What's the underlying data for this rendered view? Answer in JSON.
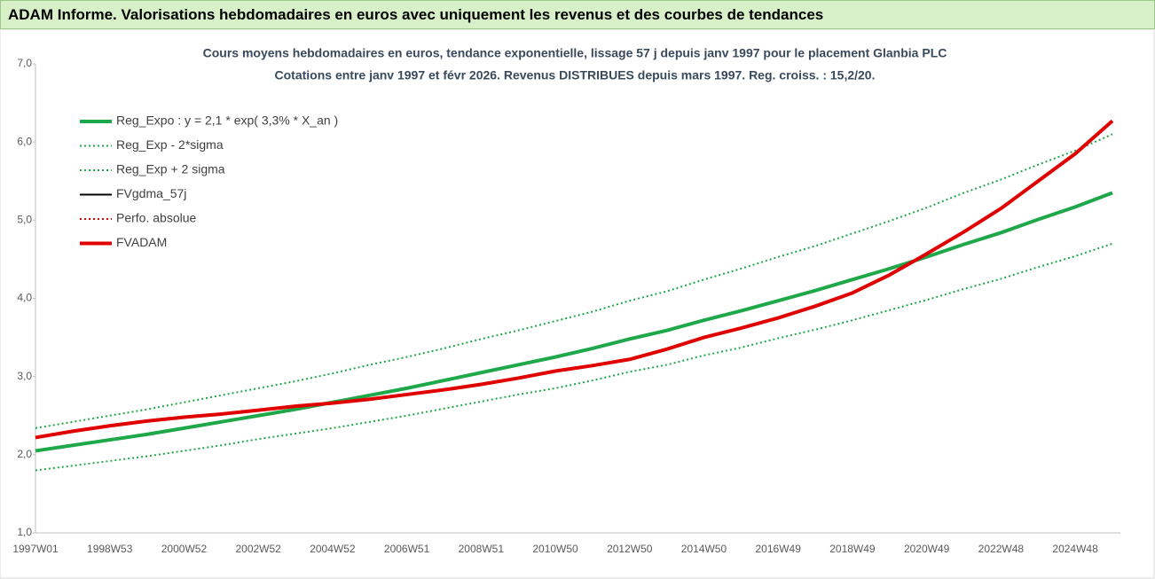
{
  "header": {
    "title": "ADAM Informe. Valorisations hebdomadaires en euros avec uniquement les revenus et des courbes de tendances"
  },
  "chart_data": {
    "type": "line",
    "title": "Cours moyens hebdomadaires en euros, tendance exponentielle, lissage 57 j depuis janv 1997 pour le placement Glanbia PLC",
    "subtitle": "Cotations entre janv 1997 et févr 2026. Revenus DISTRIBUES depuis mars 1997. Reg. croiss. : 15,2/20.",
    "categories": [
      "1997W01",
      null,
      "1998W53",
      null,
      "2000W52",
      null,
      "2002W52",
      null,
      "2004W52",
      null,
      "2006W51",
      null,
      "2008W51",
      null,
      "2010W50",
      null,
      "2012W50",
      null,
      "2014W50",
      null,
      "2016W49",
      null,
      "2018W49",
      null,
      "2020W49",
      null,
      "2022W48",
      null,
      "2024W48",
      null
    ],
    "ylim": [
      1,
      7
    ],
    "yticks": [
      {
        "value": 1,
        "label": "1,0"
      },
      {
        "value": 2,
        "label": "2,0"
      },
      {
        "value": 3,
        "label": "3,0"
      },
      {
        "value": 4,
        "label": "4,0"
      },
      {
        "value": 5,
        "label": "5,0"
      },
      {
        "value": 6,
        "label": "6,0"
      },
      {
        "value": 7,
        "label": "7,0"
      }
    ],
    "legend": "top-left",
    "series": [
      {
        "name": "Reg_Expo : y = 2,1 * exp( 3,3% *  X_an )",
        "color": "#1fa84a",
        "style": "thick",
        "values": [
          2.05,
          2.12,
          2.19,
          2.26,
          2.34,
          2.42,
          2.5,
          2.58,
          2.67,
          2.76,
          2.85,
          2.95,
          3.05,
          3.15,
          3.25,
          3.36,
          3.48,
          3.59,
          3.72,
          3.84,
          3.97,
          4.1,
          4.24,
          4.38,
          4.53,
          4.69,
          4.84,
          5.01,
          5.17,
          5.35
        ]
      },
      {
        "name": "Reg_Exp - 2*sigma",
        "color": "#1fa84a",
        "style": "dotted",
        "values": [
          1.8,
          1.86,
          1.92,
          1.98,
          2.05,
          2.12,
          2.2,
          2.27,
          2.34,
          2.42,
          2.5,
          2.59,
          2.68,
          2.77,
          2.85,
          2.95,
          3.06,
          3.15,
          3.27,
          3.37,
          3.49,
          3.6,
          3.72,
          3.85,
          3.98,
          4.12,
          4.25,
          4.4,
          4.54,
          4.7
        ]
      },
      {
        "name": "Reg_Exp + 2 sigma",
        "color": "#1fa84a",
        "style": "dotted",
        "values": [
          2.34,
          2.42,
          2.5,
          2.58,
          2.67,
          2.76,
          2.85,
          2.94,
          3.04,
          3.15,
          3.25,
          3.36,
          3.48,
          3.59,
          3.71,
          3.83,
          3.97,
          4.09,
          4.24,
          4.38,
          4.53,
          4.67,
          4.83,
          4.99,
          5.16,
          5.35,
          5.52,
          5.71,
          5.89,
          6.1
        ]
      },
      {
        "name": "FVgdma_57j",
        "color": "#000000",
        "style": "solid",
        "values": [
          2.22,
          2.3,
          2.37,
          2.43,
          2.48,
          2.52,
          2.57,
          2.62,
          2.66,
          2.71,
          2.77,
          2.83,
          2.9,
          2.98,
          3.07,
          3.14,
          3.22,
          3.35,
          3.5,
          3.62,
          3.75,
          3.9,
          4.07,
          4.3,
          4.57,
          4.85,
          5.15,
          5.5,
          5.85,
          6.27
        ]
      },
      {
        "name": "Perfo. absolue",
        "color": "#e00000",
        "style": "dotted",
        "values": [
          2.22,
          2.3,
          2.37,
          2.43,
          2.48,
          2.52,
          2.57,
          2.62,
          2.66,
          2.71,
          2.77,
          2.83,
          2.9,
          2.98,
          3.07,
          3.14,
          3.22,
          3.35,
          3.5,
          3.62,
          3.75,
          3.9,
          4.07,
          4.3,
          4.57,
          4.85,
          5.15,
          5.5,
          5.85,
          6.27
        ]
      },
      {
        "name": "FVADAM",
        "color": "#e00000",
        "style": "thick",
        "values": [
          2.22,
          2.3,
          2.37,
          2.43,
          2.48,
          2.52,
          2.57,
          2.62,
          2.66,
          2.71,
          2.77,
          2.83,
          2.9,
          2.98,
          3.07,
          3.14,
          3.22,
          3.35,
          3.5,
          3.62,
          3.75,
          3.9,
          4.07,
          4.3,
          4.57,
          4.85,
          5.15,
          5.5,
          5.85,
          6.27
        ]
      }
    ]
  }
}
